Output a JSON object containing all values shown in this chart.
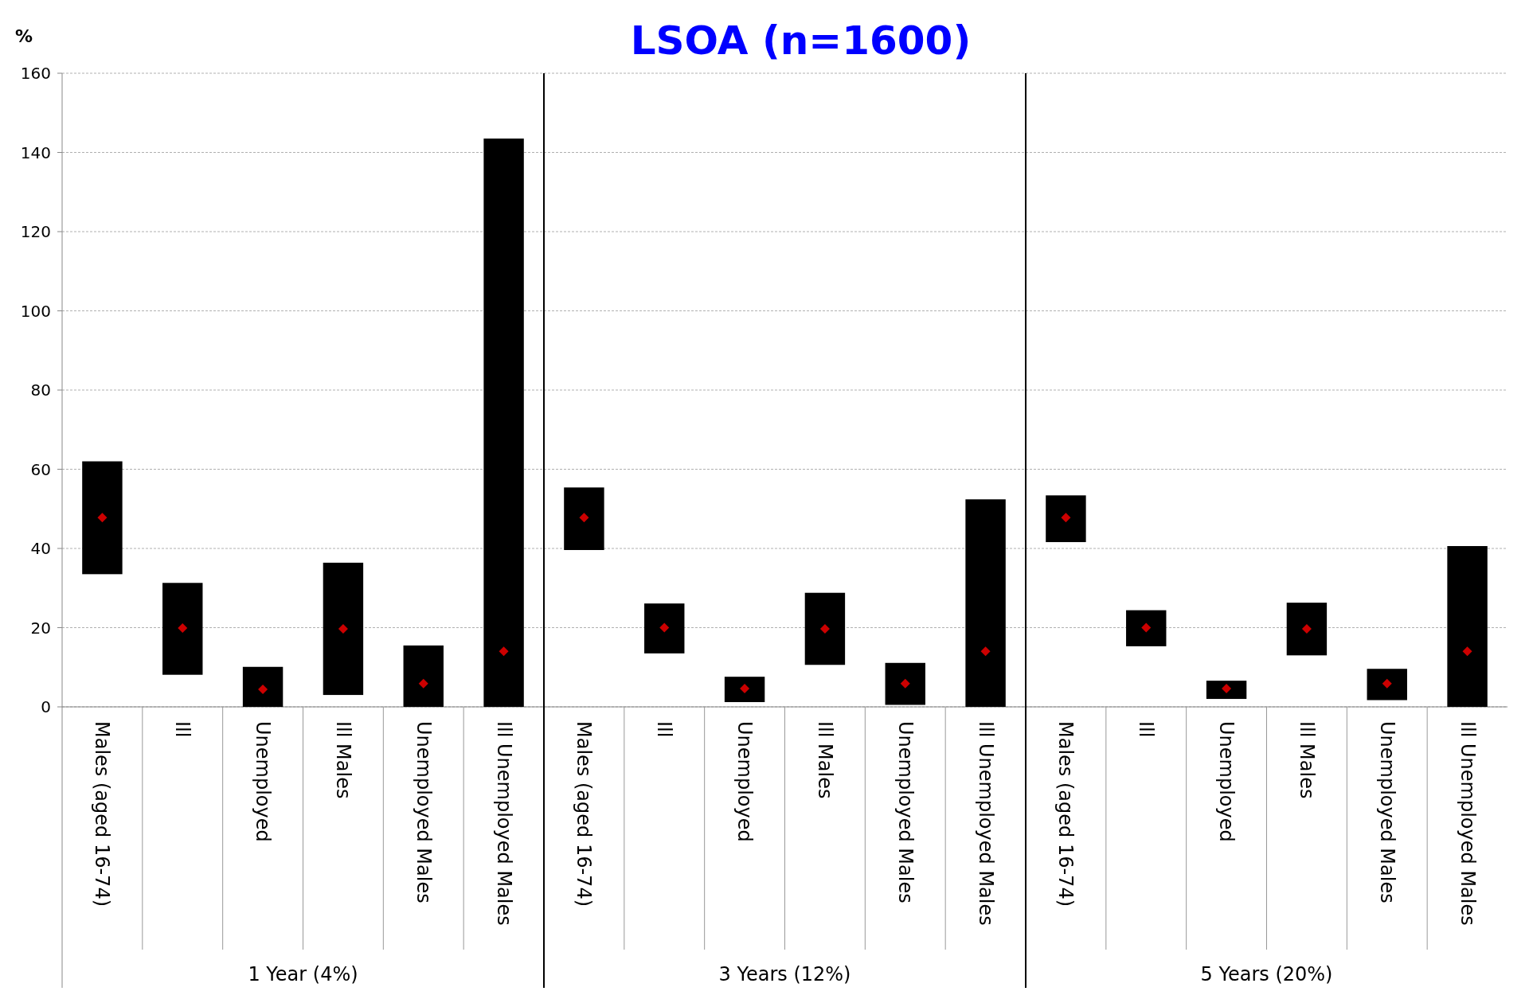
{
  "chart_data": {
    "type": "bar",
    "title": "LSOA (n=1600)",
    "ylabel": "%",
    "categories": [
      "Males (aged 16-74)",
      "Ill",
      "Unemployed",
      "Ill Males",
      "Unemployed Males",
      "Ill Unemployed Males",
      "Males (aged 16-74)",
      "Ill",
      "Unemployed",
      "Ill Males",
      "Unemployed Males",
      "Ill Unemployed Males",
      "Males (aged 16-74)",
      "Ill",
      "Unemployed",
      "Ill Males",
      "Unemployed Males",
      "Ill Unemployed Males"
    ],
    "series": [
      {
        "color": "#000000",
        "base": [
          33.5,
          8.1,
          0,
          3.0,
          0,
          0,
          39.6,
          13.5,
          1.2,
          10.6,
          0.5,
          0,
          41.6,
          15.3,
          2.0,
          13.0,
          1.7,
          0
        ],
        "values": [
          28.5,
          23.2,
          10.1,
          33.4,
          15.5,
          143.5,
          15.8,
          12.6,
          6.4,
          18.2,
          10.6,
          52.4,
          11.8,
          9.1,
          4.6,
          13.3,
          7.9,
          40.6
        ]
      },
      {
        "type": "scatter",
        "color": "#cc0000",
        "marker": "diamond",
        "values": [
          47.8,
          19.9,
          4.4,
          19.7,
          5.9,
          14.0,
          47.8,
          20.0,
          4.6,
          19.7,
          5.9,
          14.0,
          47.8,
          20.0,
          4.6,
          19.7,
          5.9,
          14.0
        ]
      }
    ],
    "ylim": [
      0,
      160
    ],
    "yticks": [
      0,
      20,
      40,
      60,
      80,
      100,
      120,
      140,
      160
    ],
    "grid": "y",
    "annotations": [
      "1 Year (4%)",
      "3 Years (12%)",
      "5 Years (20%)"
    ]
  }
}
